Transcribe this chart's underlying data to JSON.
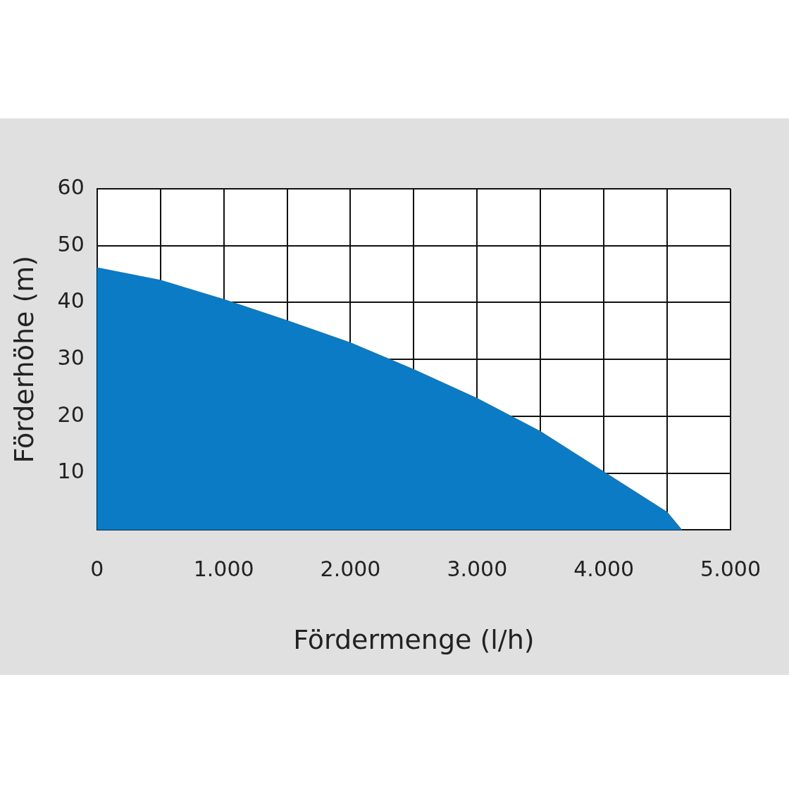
{
  "chart_data": {
    "type": "area",
    "xlabel": "Fördermenge (l/h)",
    "ylabel": "Förderhöhe (m)",
    "x": [
      0,
      500,
      1000,
      1500,
      2000,
      2500,
      3000,
      3500,
      4000,
      4500,
      4620
    ],
    "series": [
      {
        "color": "#0a7bc4",
        "values": [
          46.2,
          44,
          40.6,
          36.9,
          33,
          28.3,
          23.2,
          17.4,
          10.3,
          3.2,
          0
        ]
      }
    ],
    "xlim": [
      0,
      5000
    ],
    "xticks": [
      {
        "value": 0,
        "label": "0"
      },
      {
        "value": 500,
        "label": null
      },
      {
        "value": 1000,
        "label": "1.000"
      },
      {
        "value": 1500,
        "label": null
      },
      {
        "value": 2000,
        "label": "2.000"
      },
      {
        "value": 2500,
        "label": null
      },
      {
        "value": 3000,
        "label": "3.000"
      },
      {
        "value": 3500,
        "label": null
      },
      {
        "value": 4000,
        "label": "4.000"
      },
      {
        "value": 4500,
        "label": null
      },
      {
        "value": 5000,
        "label": "5.000"
      }
    ],
    "ylim": [
      0,
      60
    ],
    "yticks": [
      {
        "value": 0,
        "label": null
      },
      10,
      20,
      30,
      40,
      50,
      60
    ],
    "grid": true,
    "legend": false,
    "marker": "none"
  }
}
